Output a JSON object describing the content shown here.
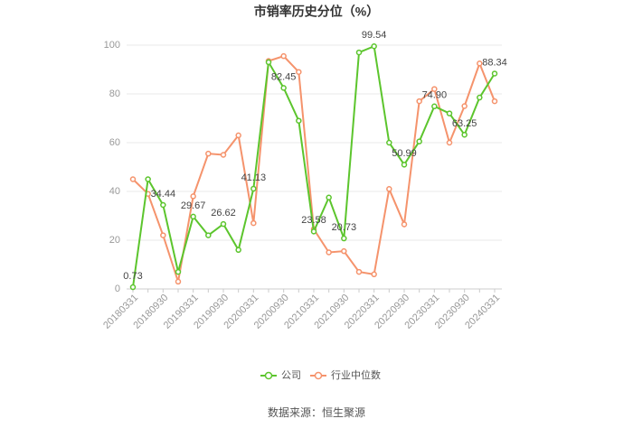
{
  "chart_data": {
    "type": "line",
    "title": "市销率历史分位（%）",
    "source": "数据来源：恒生聚源",
    "categories": [
      "20180331",
      null,
      "20180930",
      null,
      "20190331",
      null,
      "20190930",
      null,
      "20200331",
      null,
      "20200930",
      null,
      "20210331",
      null,
      "20210930",
      null,
      "20220331",
      null,
      "20220930",
      null,
      "20230331",
      null,
      "20230930",
      null,
      "20240331"
    ],
    "series": [
      {
        "name": "公司",
        "color": "#5cc52d",
        "values": [
          0.73,
          45,
          34.44,
          7,
          29.67,
          22,
          26.62,
          16,
          41.13,
          93,
          82.45,
          69,
          23.58,
          37.5,
          20.73,
          97,
          99.54,
          60,
          50.99,
          60.5,
          74.9,
          72,
          63.25,
          78.5,
          88.34
        ],
        "value_labels": [
          "0.73",
          null,
          "34.44",
          null,
          "29.67",
          null,
          "26.62",
          null,
          "41.13",
          null,
          "82.45",
          null,
          "23.58",
          null,
          "20.73",
          null,
          "99.54",
          null,
          "50.99",
          null,
          "74.90",
          null,
          "63.25",
          null,
          "88.34"
        ]
      },
      {
        "name": "行业中位数",
        "color": "#f5936c",
        "values": [
          45,
          39,
          22,
          3,
          38,
          55.5,
          55,
          63,
          27,
          93.5,
          95.5,
          89,
          24.5,
          15,
          15.5,
          7,
          6,
          41,
          26.5,
          77,
          82,
          60,
          75,
          92.5,
          77
        ]
      }
    ],
    "ylim": [
      0,
      100
    ],
    "yticks": [
      0,
      20,
      40,
      60,
      80,
      100
    ],
    "grid": true
  }
}
